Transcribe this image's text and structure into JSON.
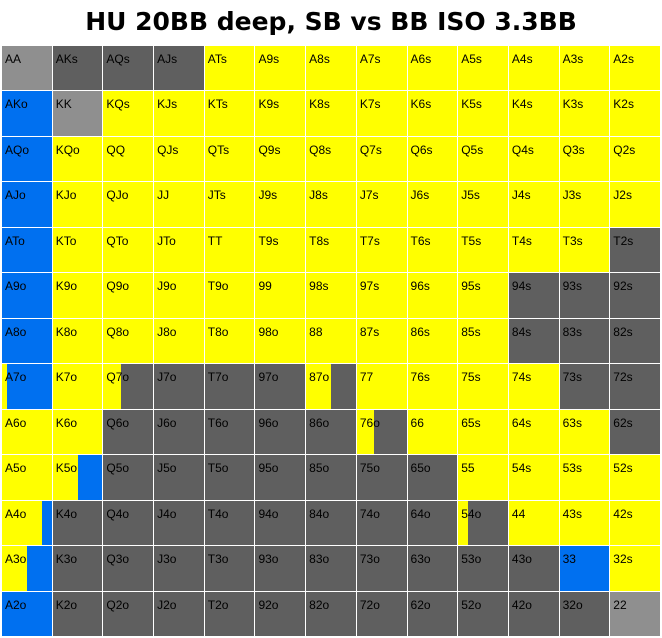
{
  "title": "HU 20BB deep, SB vs BB ISO 3.3BB",
  "colors": {
    "yellow": "#ffff00",
    "blue": "#0070f0",
    "gray": "#5f5f5f",
    "lightgray": "#8f8f8f"
  },
  "chart_data": {
    "type": "heatmap",
    "title": "HU 20BB deep, SB vs BB ISO 3.3BB",
    "ranks": [
      "A",
      "K",
      "Q",
      "J",
      "T",
      "9",
      "8",
      "7",
      "6",
      "5",
      "4",
      "3",
      "2"
    ],
    "cells": [
      [
        "AA",
        "AKs",
        "AQs",
        "AJs",
        "ATs",
        "A9s",
        "A8s",
        "A7s",
        "A6s",
        "A5s",
        "A4s",
        "A3s",
        "A2s"
      ],
      [
        "AKo",
        "KK",
        "KQs",
        "KJs",
        "KTs",
        "K9s",
        "K8s",
        "K7s",
        "K6s",
        "K5s",
        "K4s",
        "K3s",
        "K2s"
      ],
      [
        "AQo",
        "KQo",
        "QQ",
        "QJs",
        "QTs",
        "Q9s",
        "Q8s",
        "Q7s",
        "Q6s",
        "Q5s",
        "Q4s",
        "Q3s",
        "Q2s"
      ],
      [
        "AJo",
        "KJo",
        "QJo",
        "JJ",
        "JTs",
        "J9s",
        "J8s",
        "J7s",
        "J6s",
        "J5s",
        "J4s",
        "J3s",
        "J2s"
      ],
      [
        "ATo",
        "KTo",
        "QTo",
        "JTo",
        "TT",
        "T9s",
        "T8s",
        "T7s",
        "T6s",
        "T5s",
        "T4s",
        "T3s",
        "T2s"
      ],
      [
        "A9o",
        "K9o",
        "Q9o",
        "J9o",
        "T9o",
        "99",
        "98s",
        "97s",
        "96s",
        "95s",
        "94s",
        "93s",
        "92s"
      ],
      [
        "A8o",
        "K8o",
        "Q8o",
        "J8o",
        "T8o",
        "98o",
        "88",
        "87s",
        "86s",
        "85s",
        "84s",
        "83s",
        "82s"
      ],
      [
        "A7o",
        "K7o",
        "Q7o",
        "J7o",
        "T7o",
        "97o",
        "87o",
        "77",
        "76s",
        "75s",
        "74s",
        "73s",
        "72s"
      ],
      [
        "A6o",
        "K6o",
        "Q6o",
        "J6o",
        "T6o",
        "96o",
        "86o",
        "76o",
        "66",
        "65s",
        "64s",
        "63s",
        "62s"
      ],
      [
        "A5o",
        "K5o",
        "Q5o",
        "J5o",
        "T5o",
        "95o",
        "85o",
        "75o",
        "65o",
        "55",
        "54s",
        "53s",
        "52s"
      ],
      [
        "A4o",
        "K4o",
        "Q4o",
        "J4o",
        "T4o",
        "94o",
        "84o",
        "74o",
        "64o",
        "54o",
        "44",
        "43s",
        "42s"
      ],
      [
        "A3o",
        "K3o",
        "Q3o",
        "J3o",
        "T3o",
        "93o",
        "83o",
        "73o",
        "63o",
        "53o",
        "43o",
        "33",
        "32s"
      ],
      [
        "A2o",
        "K2o",
        "Q2o",
        "J2o",
        "T2o",
        "92o",
        "82o",
        "72o",
        "62o",
        "52o",
        "42o",
        "32o",
        "22"
      ]
    ],
    "actions": {
      "AA": [
        [
          "lightgray",
          1
        ]
      ],
      "AKs": [
        [
          "gray",
          1
        ]
      ],
      "AQs": [
        [
          "gray",
          1
        ]
      ],
      "AJs": [
        [
          "gray",
          1
        ]
      ],
      "KK": [
        [
          "lightgray",
          1
        ]
      ],
      "22": [
        [
          "lightgray",
          1
        ]
      ],
      "33": [
        [
          "blue",
          1
        ]
      ],
      "AKo": [
        [
          "blue",
          1
        ]
      ],
      "AQo": [
        [
          "blue",
          1
        ]
      ],
      "AJo": [
        [
          "blue",
          1
        ]
      ],
      "ATo": [
        [
          "blue",
          1
        ]
      ],
      "A9o": [
        [
          "blue",
          1
        ]
      ],
      "A8o": [
        [
          "blue",
          1
        ]
      ],
      "A2o": [
        [
          "blue",
          1
        ]
      ],
      "A7o": [
        [
          "yellow",
          0.1
        ],
        [
          "blue",
          0.9
        ]
      ],
      "A6o": [
        [
          "yellow",
          1
        ]
      ],
      "A5o": [
        [
          "yellow",
          1
        ]
      ],
      "A4o": [
        [
          "yellow",
          0.8
        ],
        [
          "blue",
          0.2
        ]
      ],
      "A3o": [
        [
          "yellow",
          0.5
        ],
        [
          "blue",
          0.5
        ]
      ],
      "K5o": [
        [
          "yellow",
          0.5
        ],
        [
          "blue",
          0.5
        ]
      ],
      "Q7o": [
        [
          "yellow",
          0.35
        ],
        [
          "gray",
          0.65
        ]
      ],
      "87o": [
        [
          "yellow",
          0.5
        ],
        [
          "gray",
          0.5
        ]
      ],
      "76o": [
        [
          "yellow",
          0.35
        ],
        [
          "gray",
          0.65
        ]
      ],
      "54o": [
        [
          "yellow",
          0.2
        ],
        [
          "gray",
          0.8
        ]
      ],
      "T2s": [
        [
          "gray",
          1
        ]
      ],
      "94s": [
        [
          "gray",
          1
        ]
      ],
      "93s": [
        [
          "gray",
          1
        ]
      ],
      "92s": [
        [
          "gray",
          1
        ]
      ],
      "84s": [
        [
          "gray",
          1
        ]
      ],
      "83s": [
        [
          "gray",
          1
        ]
      ],
      "82s": [
        [
          "gray",
          1
        ]
      ],
      "73s": [
        [
          "gray",
          1
        ]
      ],
      "72s": [
        [
          "gray",
          1
        ]
      ],
      "62s": [
        [
          "gray",
          1
        ]
      ]
    },
    "default_action": "yellow",
    "offsuit_gray_default": true
  }
}
